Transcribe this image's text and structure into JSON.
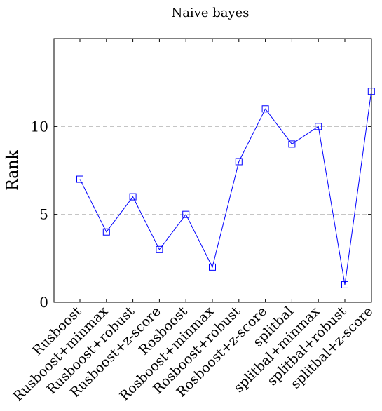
{
  "chart_data": {
    "type": "line",
    "title": "Naive bayes",
    "xlabel": "",
    "ylabel": "Rank",
    "categories": [
      "Rusboost",
      "Rusboost+minmax",
      "Rusboost+robust",
      "Rusboost+z-score",
      "Rosboost",
      "Rosboost+minmax",
      "Rosboost+robust",
      "Rosboost+z-score",
      "splitbal",
      "splitbal+minmax",
      "splitbal+robust",
      "splitbal+z-score"
    ],
    "series": [
      {
        "values": [
          7,
          4,
          6,
          3,
          5,
          2,
          8,
          11,
          9,
          10,
          1,
          12
        ]
      }
    ],
    "ylim": [
      0,
      15
    ],
    "yticks": [
      0,
      5,
      10
    ],
    "grid": "horizontal dashed",
    "marker": "square",
    "line_color": "#0000ff"
  }
}
